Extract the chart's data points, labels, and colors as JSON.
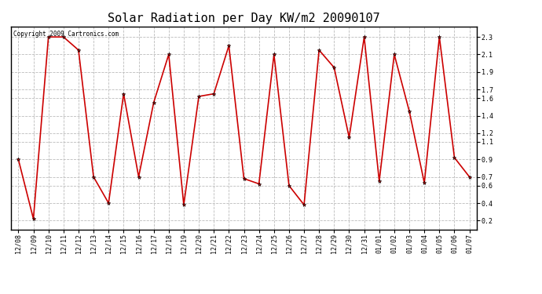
{
  "title": "Solar Radiation per Day KW/m2 20090107",
  "copyright_text": "Copyright 2009 Cartronics.com",
  "dates": [
    "12/08",
    "12/09",
    "12/10",
    "12/11",
    "12/12",
    "12/13",
    "12/14",
    "12/15",
    "12/16",
    "12/17",
    "12/18",
    "12/19",
    "12/20",
    "12/21",
    "12/22",
    "12/23",
    "12/24",
    "12/25",
    "12/26",
    "12/27",
    "12/28",
    "12/29",
    "12/30",
    "12/31",
    "01/01",
    "01/02",
    "01/03",
    "01/04",
    "01/05",
    "01/06",
    "01/07"
  ],
  "values": [
    0.9,
    0.22,
    2.3,
    2.3,
    2.15,
    0.7,
    0.4,
    1.65,
    0.7,
    1.55,
    2.1,
    0.38,
    1.62,
    1.65,
    2.2,
    0.68,
    0.62,
    2.1,
    0.6,
    0.38,
    2.15,
    1.95,
    1.15,
    2.3,
    0.65,
    2.1,
    1.45,
    0.63,
    2.3,
    0.92,
    0.7
  ],
  "line_color": "#cc0000",
  "marker": "*",
  "marker_color": "#000000",
  "marker_size": 3.5,
  "line_width": 1.2,
  "ylim": [
    0.1,
    2.42
  ],
  "yticks": [
    0.2,
    0.4,
    0.6,
    0.7,
    0.9,
    1.1,
    1.2,
    1.4,
    1.6,
    1.7,
    1.9,
    2.1,
    2.3
  ],
  "grid_color": "#bbbbbb",
  "grid_style": "--",
  "background_color": "#ffffff",
  "title_fontsize": 11,
  "tick_fontsize": 6,
  "copyright_fontsize": 5.5
}
